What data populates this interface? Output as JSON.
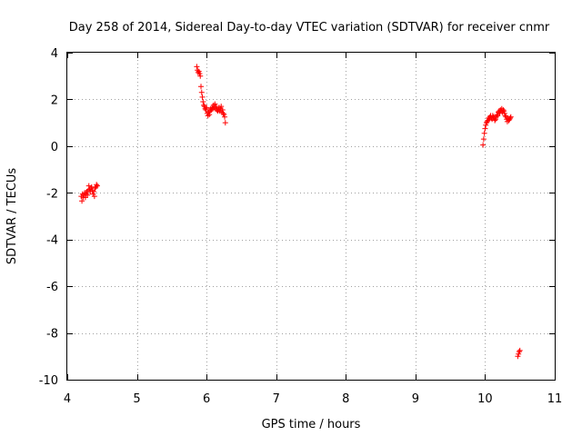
{
  "chart_data": {
    "type": "scatter",
    "title": "Day 258 of 2014, Sidereal Day-to-day VTEC variation (SDTVAR) for receiver cnmr",
    "xlabel": "GPS time / hours",
    "ylabel": "SDTVAR / TECUs",
    "xlim": [
      4,
      11
    ],
    "ylim": [
      -10,
      4
    ],
    "xticks": [
      4,
      5,
      6,
      7,
      8,
      9,
      10,
      11
    ],
    "yticks": [
      4,
      2,
      0,
      -2,
      -4,
      -6,
      -8,
      -10
    ],
    "grid": true,
    "marker": "+",
    "color": "#ff0000",
    "series": [
      {
        "name": "SDTVAR",
        "points": [
          [
            4.2,
            -2.15
          ],
          [
            4.21,
            -2.35
          ],
          [
            4.22,
            -2.05
          ],
          [
            4.23,
            -2.2
          ],
          [
            4.24,
            -2.1
          ],
          [
            4.25,
            -2.0
          ],
          [
            4.26,
            -2.2
          ],
          [
            4.27,
            -2.05
          ],
          [
            4.28,
            -1.95
          ],
          [
            4.29,
            -2.1
          ],
          [
            4.3,
            -1.9
          ],
          [
            4.31,
            -1.7
          ],
          [
            4.32,
            -1.85
          ],
          [
            4.33,
            -1.95
          ],
          [
            4.34,
            -1.8
          ],
          [
            4.35,
            -1.75
          ],
          [
            4.36,
            -1.9
          ],
          [
            4.37,
            -2.05
          ],
          [
            4.38,
            -1.95
          ],
          [
            4.39,
            -2.15
          ],
          [
            4.4,
            -1.8
          ],
          [
            4.41,
            -1.75
          ],
          [
            4.42,
            -1.65
          ],
          [
            4.43,
            -1.7
          ],
          [
            5.86,
            3.4
          ],
          [
            5.87,
            3.25
          ],
          [
            5.88,
            3.15
          ],
          [
            5.89,
            3.2
          ],
          [
            5.9,
            3.1
          ],
          [
            5.91,
            3.0
          ],
          [
            5.92,
            2.55
          ],
          [
            5.93,
            2.3
          ],
          [
            5.94,
            2.1
          ],
          [
            5.95,
            1.9
          ],
          [
            5.96,
            1.75
          ],
          [
            5.97,
            1.7
          ],
          [
            5.98,
            1.6
          ],
          [
            5.99,
            1.55
          ],
          [
            6.0,
            1.65
          ],
          [
            6.01,
            1.4
          ],
          [
            6.02,
            1.3
          ],
          [
            6.03,
            1.45
          ],
          [
            6.04,
            1.35
          ],
          [
            6.05,
            1.5
          ],
          [
            6.06,
            1.6
          ],
          [
            6.07,
            1.55
          ],
          [
            6.08,
            1.65
          ],
          [
            6.09,
            1.6
          ],
          [
            6.1,
            1.75
          ],
          [
            6.11,
            1.65
          ],
          [
            6.12,
            1.8
          ],
          [
            6.13,
            1.6
          ],
          [
            6.14,
            1.7
          ],
          [
            6.15,
            1.55
          ],
          [
            6.16,
            1.5
          ],
          [
            6.17,
            1.55
          ],
          [
            6.18,
            1.65
          ],
          [
            6.19,
            1.5
          ],
          [
            6.2,
            1.6
          ],
          [
            6.21,
            1.7
          ],
          [
            6.22,
            1.45
          ],
          [
            6.23,
            1.55
          ],
          [
            6.24,
            1.4
          ],
          [
            6.25,
            1.35
          ],
          [
            6.26,
            1.25
          ],
          [
            6.27,
            1.0
          ],
          [
            9.97,
            0.05
          ],
          [
            9.98,
            0.3
          ],
          [
            9.99,
            0.55
          ],
          [
            10.0,
            0.75
          ],
          [
            10.01,
            0.9
          ],
          [
            10.02,
            1.0
          ],
          [
            10.03,
            1.05
          ],
          [
            10.04,
            1.1
          ],
          [
            10.05,
            1.2
          ],
          [
            10.06,
            1.15
          ],
          [
            10.07,
            1.25
          ],
          [
            10.08,
            1.3
          ],
          [
            10.09,
            1.2
          ],
          [
            10.1,
            1.15
          ],
          [
            10.11,
            1.3
          ],
          [
            10.12,
            1.25
          ],
          [
            10.13,
            1.2
          ],
          [
            10.14,
            1.1
          ],
          [
            10.15,
            1.15
          ],
          [
            10.16,
            1.25
          ],
          [
            10.17,
            1.35
          ],
          [
            10.18,
            1.3
          ],
          [
            10.19,
            1.45
          ],
          [
            10.2,
            1.5
          ],
          [
            10.21,
            1.4
          ],
          [
            10.22,
            1.55
          ],
          [
            10.23,
            1.5
          ],
          [
            10.24,
            1.6
          ],
          [
            10.25,
            1.45
          ],
          [
            10.26,
            1.55
          ],
          [
            10.27,
            1.5
          ],
          [
            10.28,
            1.4
          ],
          [
            10.29,
            1.3
          ],
          [
            10.3,
            1.25
          ],
          [
            10.31,
            1.15
          ],
          [
            10.32,
            1.05
          ],
          [
            10.33,
            1.2
          ],
          [
            10.34,
            1.1
          ],
          [
            10.35,
            1.15
          ],
          [
            10.36,
            1.2
          ],
          [
            10.37,
            1.25
          ],
          [
            10.47,
            -9.0
          ],
          [
            10.48,
            -8.9
          ],
          [
            10.49,
            -8.8
          ],
          [
            10.5,
            -8.75
          ]
        ]
      }
    ]
  }
}
